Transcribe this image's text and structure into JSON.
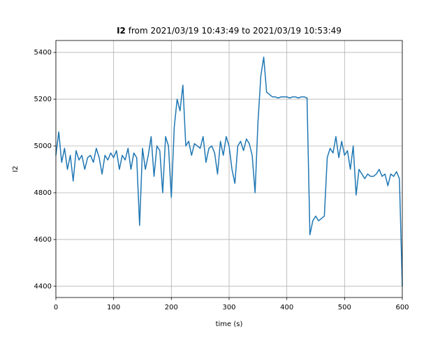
{
  "chart_data": {
    "type": "line",
    "title": [
      "I2",
      "from 2021/03/19 10:43:49 to 2021/03/19 10:53:49"
    ],
    "x_label": "time (s)",
    "y_label": "I2",
    "xlim": [
      0,
      600
    ],
    "ylim": [
      4352,
      5451
    ],
    "xticks": [
      0,
      100,
      200,
      300,
      400,
      500,
      600
    ],
    "yticks": [
      4400,
      4600,
      4800,
      5000,
      5200,
      5400
    ],
    "grid": true,
    "x": [
      0,
      5,
      10,
      15,
      20,
      25,
      30,
      35,
      40,
      45,
      50,
      55,
      60,
      65,
      70,
      75,
      80,
      85,
      90,
      95,
      100,
      105,
      110,
      115,
      120,
      125,
      130,
      135,
      140,
      145,
      150,
      155,
      160,
      165,
      170,
      175,
      180,
      185,
      190,
      195,
      200,
      205,
      210,
      215,
      220,
      225,
      230,
      235,
      240,
      245,
      250,
      255,
      260,
      265,
      270,
      275,
      280,
      285,
      290,
      295,
      300,
      305,
      310,
      315,
      320,
      325,
      330,
      335,
      340,
      345,
      350,
      355,
      360,
      365,
      370,
      375,
      380,
      385,
      390,
      395,
      400,
      405,
      410,
      415,
      420,
      425,
      430,
      435,
      440,
      445,
      450,
      455,
      460,
      465,
      470,
      475,
      480,
      485,
      490,
      495,
      500,
      505,
      510,
      515,
      520,
      525,
      530,
      535,
      540,
      545,
      550,
      555,
      560,
      565,
      570,
      575,
      580,
      585,
      590,
      595,
      600
    ],
    "series": [
      {
        "name": "I2",
        "color": "#1f77b4",
        "values": [
          4960,
          5060,
          4930,
          4990,
          4900,
          4960,
          4850,
          4980,
          4940,
          4960,
          4900,
          4950,
          4960,
          4930,
          4990,
          4950,
          4880,
          4960,
          4940,
          4970,
          4950,
          4980,
          4900,
          4960,
          4940,
          4990,
          4900,
          4970,
          4950,
          4660,
          4990,
          4900,
          4960,
          5040,
          4870,
          5000,
          4980,
          4800,
          5040,
          5000,
          4780,
          5080,
          5200,
          5150,
          5260,
          5000,
          5020,
          4960,
          5010,
          5000,
          4990,
          5040,
          4930,
          4990,
          5000,
          4970,
          4880,
          5020,
          4960,
          5040,
          5000,
          4900,
          4840,
          5000,
          5020,
          4980,
          5030,
          5010,
          4960,
          4800,
          5100,
          5300,
          5380,
          5230,
          5220,
          5210,
          5210,
          5205,
          5210,
          5210,
          5210,
          5205,
          5210,
          5210,
          5205,
          5210,
          5210,
          5205,
          4620,
          4680,
          4700,
          4680,
          4690,
          4700,
          4950,
          4990,
          4970,
          5040,
          4950,
          5020,
          4960,
          4980,
          4900,
          5000,
          4790,
          4900,
          4880,
          4860,
          4880,
          4870,
          4870,
          4880,
          4900,
          4870,
          4880,
          4830,
          4880,
          4870,
          4890,
          4860,
          4400
        ]
      }
    ]
  }
}
